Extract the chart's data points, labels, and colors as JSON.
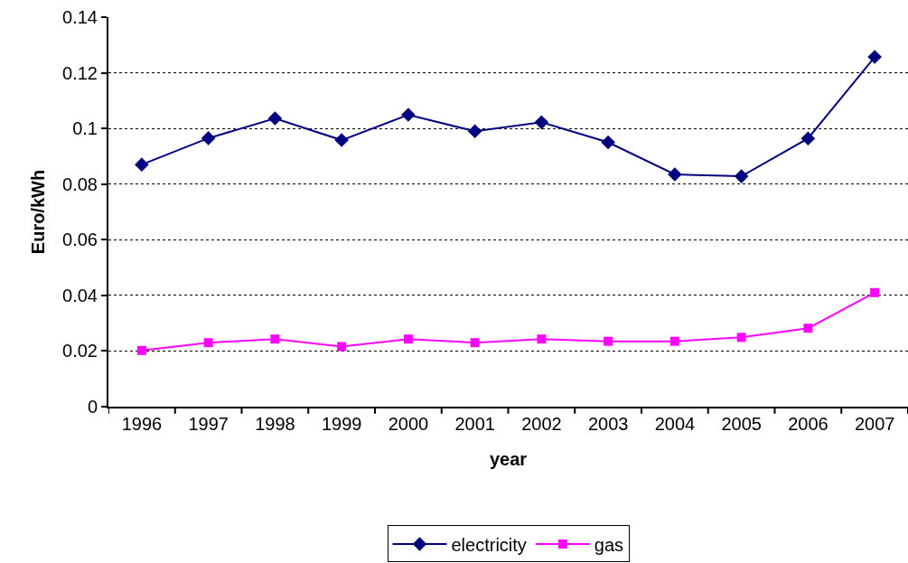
{
  "chart_data": {
    "type": "line",
    "xlabel": "year",
    "ylabel": "Euro/kWh",
    "categories": [
      "1996",
      "1997",
      "1998",
      "1999",
      "2000",
      "2001",
      "2002",
      "2003",
      "2004",
      "2005",
      "2006",
      "2007"
    ],
    "series": [
      {
        "name": "electricity",
        "color": "#000080",
        "marker": "diamond",
        "values": [
          0.087,
          0.0965,
          0.1036,
          0.0958,
          0.1049,
          0.099,
          0.1022,
          0.095,
          0.0835,
          0.0828,
          0.0964,
          0.1257
        ]
      },
      {
        "name": "gas",
        "color": "#ff00ff",
        "marker": "square",
        "values": [
          0.0202,
          0.023,
          0.0243,
          0.0216,
          0.0243,
          0.023,
          0.0243,
          0.0235,
          0.0235,
          0.0249,
          0.0282,
          0.041
        ]
      }
    ],
    "ylim": [
      0,
      0.14
    ],
    "yticks": [
      0,
      0.02,
      0.04,
      0.06,
      0.08,
      0.1,
      0.12,
      0.14
    ],
    "grid": "y",
    "legend": "bottom",
    "line_style": "solid"
  }
}
